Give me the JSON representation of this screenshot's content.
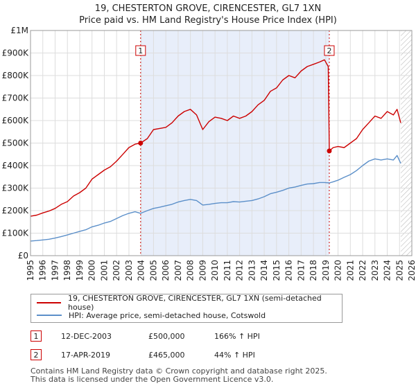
{
  "title_line1": "19, CHESTERTON GROVE, CIRENCESTER, GL7 1XN",
  "title_line2": "Price paid vs. HM Land Registry's House Price Index (HPI)",
  "legend": {
    "property_label": "19, CHESTERTON GROVE, CIRENCESTER, GL7 1XN (semi-detached house)",
    "hpi_label": "HPI: Average price, semi-detached house, Cotswold"
  },
  "transactions": [
    {
      "marker": "1",
      "date": "12-DEC-2003",
      "price": "£500,000",
      "hpi": "166% ↑ HPI"
    },
    {
      "marker": "2",
      "date": "17-APR-2019",
      "price": "£465,000",
      "hpi": "44% ↑ HPI"
    }
  ],
  "footer_line1": "Contains HM Land Registry data © Crown copyright and database right 2025.",
  "footer_line2": "This data is licensed under the Open Government Licence v3.0.",
  "colors": {
    "property": "#cc0000",
    "hpi": "#5b8fc9",
    "shade": "#e8eefa",
    "grid": "#dddddd"
  },
  "chart_data": {
    "type": "line",
    "title": "19, CHESTERTON GROVE, CIRENCESTER, GL7 1XN — Price paid vs. HM Land Registry's House Price Index (HPI)",
    "xlabel": "",
    "ylabel": "",
    "xlim": [
      1995,
      2026
    ],
    "ylim": [
      0,
      1000000
    ],
    "x_ticks": [
      1995,
      1996,
      1997,
      1998,
      1999,
      2000,
      2001,
      2002,
      2003,
      2004,
      2005,
      2006,
      2007,
      2008,
      2009,
      2010,
      2011,
      2012,
      2013,
      2014,
      2015,
      2016,
      2017,
      2018,
      2019,
      2020,
      2021,
      2022,
      2023,
      2024,
      2025,
      2026
    ],
    "y_ticks": [
      {
        "value": 0,
        "label": "£0"
      },
      {
        "value": 100000,
        "label": "£100K"
      },
      {
        "value": 200000,
        "label": "£200K"
      },
      {
        "value": 300000,
        "label": "£300K"
      },
      {
        "value": 400000,
        "label": "£400K"
      },
      {
        "value": 500000,
        "label": "£500K"
      },
      {
        "value": 600000,
        "label": "£600K"
      },
      {
        "value": 700000,
        "label": "£700K"
      },
      {
        "value": 800000,
        "label": "£800K"
      },
      {
        "value": 900000,
        "label": "£900K"
      },
      {
        "value": 1000000,
        "label": "£1M"
      }
    ],
    "shaded_range": [
      2003.95,
      2019.29
    ],
    "hatched_from": 2025.1,
    "series": [
      {
        "name": "19, CHESTERTON GROVE, CIRENCESTER, GL7 1XN (semi-detached house)",
        "x": [
          1995.0,
          1995.5,
          1996.0,
          1996.5,
          1997.0,
          1997.5,
          1998.0,
          1998.5,
          1999.0,
          1999.5,
          2000.0,
          2000.5,
          2001.0,
          2001.5,
          2002.0,
          2002.5,
          2003.0,
          2003.5,
          2003.95,
          2004.5,
          2005.0,
          2005.5,
          2006.0,
          2006.5,
          2007.0,
          2007.5,
          2008.0,
          2008.5,
          2009.0,
          2009.5,
          2010.0,
          2010.5,
          2011.0,
          2011.5,
          2012.0,
          2012.5,
          2013.0,
          2013.5,
          2014.0,
          2014.5,
          2015.0,
          2015.5,
          2016.0,
          2016.5,
          2017.0,
          2017.5,
          2018.0,
          2018.5,
          2018.9,
          2019.2,
          2019.29,
          2019.6,
          2020.0,
          2020.5,
          2021.0,
          2021.5,
          2022.0,
          2022.5,
          2023.0,
          2023.5,
          2024.0,
          2024.5,
          2024.8,
          2025.1
        ],
        "values": [
          175000,
          180000,
          190000,
          198000,
          210000,
          228000,
          240000,
          265000,
          280000,
          300000,
          340000,
          360000,
          380000,
          395000,
          420000,
          450000,
          480000,
          495000,
          500000,
          520000,
          560000,
          565000,
          570000,
          590000,
          620000,
          640000,
          650000,
          625000,
          560000,
          595000,
          615000,
          610000,
          600000,
          620000,
          610000,
          620000,
          640000,
          670000,
          690000,
          730000,
          745000,
          780000,
          800000,
          790000,
          820000,
          840000,
          850000,
          860000,
          870000,
          840000,
          465000,
          480000,
          485000,
          480000,
          500000,
          520000,
          560000,
          590000,
          620000,
          610000,
          640000,
          625000,
          650000,
          590000
        ]
      },
      {
        "name": "HPI: Average price, semi-detached house, Cotswold",
        "x": [
          1995.0,
          1995.5,
          1996.0,
          1996.5,
          1997.0,
          1997.5,
          1998.0,
          1998.5,
          1999.0,
          1999.5,
          2000.0,
          2000.5,
          2001.0,
          2001.5,
          2002.0,
          2002.5,
          2003.0,
          2003.5,
          2003.95,
          2004.5,
          2005.0,
          2005.5,
          2006.0,
          2006.5,
          2007.0,
          2007.5,
          2008.0,
          2008.5,
          2009.0,
          2009.5,
          2010.0,
          2010.5,
          2011.0,
          2011.5,
          2012.0,
          2012.5,
          2013.0,
          2013.5,
          2014.0,
          2014.5,
          2015.0,
          2015.5,
          2016.0,
          2016.5,
          2017.0,
          2017.5,
          2018.0,
          2018.5,
          2018.9,
          2019.29,
          2019.6,
          2020.0,
          2020.5,
          2021.0,
          2021.5,
          2022.0,
          2022.5,
          2023.0,
          2023.5,
          2024.0,
          2024.5,
          2024.8,
          2025.1
        ],
        "values": [
          65000,
          67000,
          70000,
          73000,
          78000,
          85000,
          92000,
          100000,
          108000,
          115000,
          128000,
          135000,
          145000,
          152000,
          165000,
          178000,
          188000,
          195000,
          188000,
          200000,
          210000,
          215000,
          222000,
          228000,
          238000,
          245000,
          250000,
          245000,
          225000,
          228000,
          232000,
          235000,
          235000,
          240000,
          238000,
          242000,
          245000,
          252000,
          262000,
          275000,
          282000,
          290000,
          300000,
          305000,
          312000,
          318000,
          320000,
          325000,
          325000,
          323000,
          328000,
          335000,
          348000,
          360000,
          378000,
          400000,
          420000,
          430000,
          425000,
          430000,
          425000,
          445000,
          410000
        ]
      }
    ],
    "annotations": [
      {
        "label": "1",
        "x": 2003.95,
        "value": 500000
      },
      {
        "label": "2",
        "x": 2019.29,
        "value": 465000
      }
    ]
  }
}
